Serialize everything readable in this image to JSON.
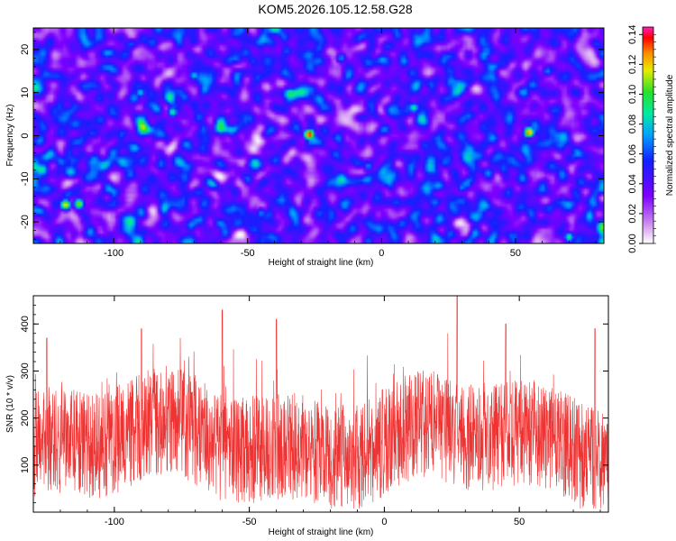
{
  "title": "KOM5.2026.105.12.58.G28",
  "chart_data": [
    {
      "type": "heatmap",
      "xlabel": "Height of straight line (km)",
      "ylabel": "Frequency (Hz)",
      "xlim": [
        -130,
        83
      ],
      "ylim": [
        -25,
        25
      ],
      "xticks": [
        -100,
        -50,
        0,
        50
      ],
      "yticks": [
        -20,
        -10,
        0,
        10,
        20
      ],
      "colorbar": {
        "label": "Normalized spectral amplitude",
        "range": [
          0,
          0.145
        ],
        "ticks": [
          "0.00",
          "0.02",
          "0.04",
          "0.06",
          "0.08",
          "0.10",
          "0.12",
          "0.14"
        ]
      },
      "peaks": [
        {
          "x": -27,
          "y": 0.3,
          "value": 0.14
        },
        {
          "x": 55,
          "y": 0.8,
          "value": 0.13
        },
        {
          "x": -118,
          "y": -16,
          "value": 0.12
        },
        {
          "x": -113,
          "y": -15.8,
          "value": 0.11
        },
        {
          "x": -78,
          "y": 5.5,
          "value": 0.09
        },
        {
          "x": 12,
          "y": 6.5,
          "value": 0.09
        },
        {
          "x": 70,
          "y": -23.5,
          "value": 0.09
        },
        {
          "x": -90,
          "y": 10,
          "value": 0.08
        },
        {
          "x": -70,
          "y": 14,
          "value": 0.08
        },
        {
          "x": -15,
          "y": 18,
          "value": 0.07
        },
        {
          "x": 30,
          "y": -12,
          "value": 0.07
        },
        {
          "x": -45,
          "y": -18,
          "value": 0.07
        },
        {
          "x": 62,
          "y": 15,
          "value": 0.07
        },
        {
          "x": -5,
          "y": -7,
          "value": 0.07
        },
        {
          "x": 40,
          "y": 21,
          "value": 0.06
        }
      ]
    },
    {
      "type": "line",
      "xlabel": "Height of straight line (km)",
      "ylabel": "SNR (10 * v/v)",
      "xlim": [
        -130,
        83
      ],
      "ylim": [
        0,
        460
      ],
      "xticks": [
        -100,
        -50,
        0,
        50
      ],
      "yticks": [
        100,
        200,
        300,
        400
      ],
      "line_color": "#ee3333",
      "baseline_mean": 150,
      "notable_spikes": [
        {
          "x": -60,
          "y": 430
        },
        {
          "x": 27,
          "y": 460
        },
        {
          "x": -40,
          "y": 410
        },
        {
          "x": -90,
          "y": 390
        },
        {
          "x": 45,
          "y": 400
        },
        {
          "x": 78,
          "y": 390
        },
        {
          "x": -125,
          "y": 370
        }
      ]
    }
  ]
}
